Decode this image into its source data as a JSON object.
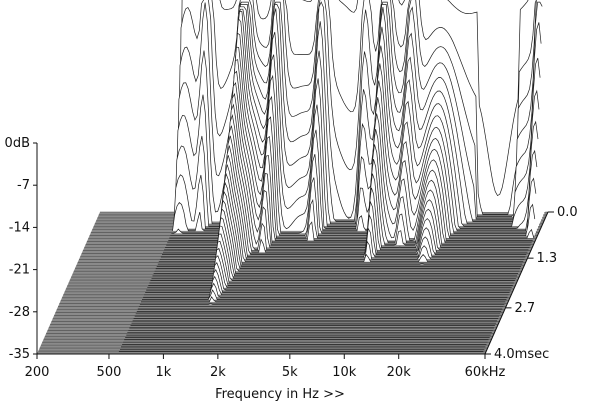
{
  "chart_data": {
    "type": "waterfall",
    "title": "",
    "xlabel": "Frequency in Hz >>",
    "ylabel": "",
    "zlabel": "",
    "x_scale": "log",
    "xlim": [
      200,
      60000
    ],
    "ylim": [
      -35,
      0
    ],
    "zlim": [
      0,
      4.0
    ],
    "x_ticks": [
      {
        "value": 200,
        "label": "200"
      },
      {
        "value": 500,
        "label": "500"
      },
      {
        "value": 1000,
        "label": "1k"
      },
      {
        "value": 2000,
        "label": "2k"
      },
      {
        "value": 5000,
        "label": "5k"
      },
      {
        "value": 10000,
        "label": "10k"
      },
      {
        "value": 20000,
        "label": "20k"
      },
      {
        "value": 60000,
        "label": "60kHz"
      }
    ],
    "y_ticks": [
      {
        "value": 0,
        "label": "0dB"
      },
      {
        "value": -7,
        "label": "-7"
      },
      {
        "value": -14,
        "label": "-14"
      },
      {
        "value": -21,
        "label": "-21"
      },
      {
        "value": -28,
        "label": "-28"
      },
      {
        "value": -35,
        "label": "-35"
      }
    ],
    "z_ticks": [
      {
        "value": 0.0,
        "label": "0.0"
      },
      {
        "value": 1.3,
        "label": "1.3"
      },
      {
        "value": 2.7,
        "label": "2.7"
      },
      {
        "value": 4.0,
        "label": "4.0msec"
      }
    ],
    "colors": {
      "line": "#1e1e1e",
      "fill": "#ffffff",
      "floor": "#8a8a8a",
      "floor_line": "#4a4a4a",
      "axis": "#111111"
    }
  }
}
